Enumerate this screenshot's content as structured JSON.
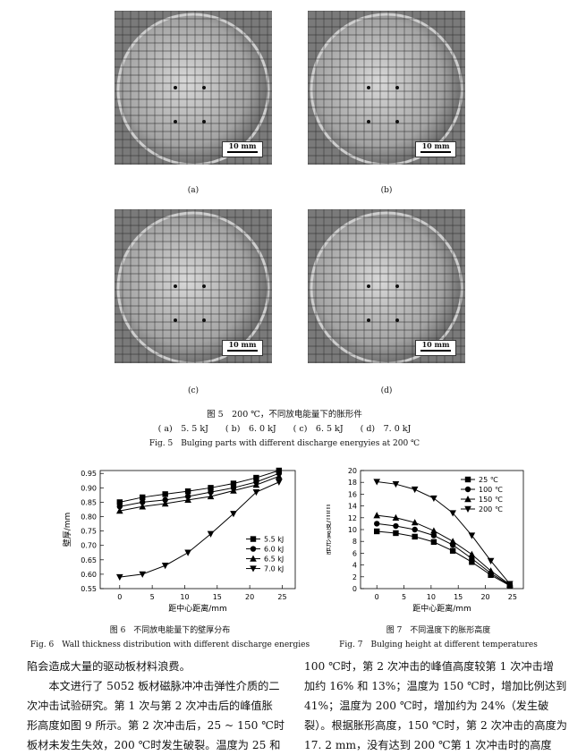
{
  "photos": [
    {
      "label": "(a)",
      "scale": "10 mm"
    },
    {
      "label": "(b)",
      "scale": "10 mm"
    },
    {
      "label": "(c)",
      "scale": "10 mm"
    },
    {
      "label": "(d)",
      "scale": "10 mm"
    }
  ],
  "fig5": {
    "title_cn": "图 5　200 ℃，不同放电能量下的胀形件",
    "subs": "( a)　5. 5 kJ　　( b)　6. 0 kJ　　( c)　6. 5 kJ　　( d)　7. 0 kJ",
    "title_en": "Fig. 5　Bulging parts with different discharge energyies at 200 ℃"
  },
  "fig6": {
    "caption_cn": "图 6　不同放电能量下的壁厚分布",
    "caption_en": "Fig. 6　Wall thickness distribution with different discharge energies"
  },
  "fig7": {
    "caption_cn": "图 7　不同温度下的胀形高度",
    "caption_en": "Fig. 7　Bulging height at different temperatures"
  },
  "chart_data": [
    {
      "type": "line",
      "title": "",
      "xlabel": "距中心距离/mm",
      "ylabel": "壁厚/mm",
      "xlim": [
        -3,
        27
      ],
      "ylim": [
        0.55,
        0.96
      ],
      "xticks": [
        "0",
        "5",
        "10",
        "15",
        "20",
        "25"
      ],
      "yticks": [
        "0.55",
        "0.60",
        "0.65",
        "0.70",
        "0.75",
        "0.80",
        "0.85",
        "0.90",
        "0.95"
      ],
      "x": [
        0,
        3.5,
        7,
        10.5,
        14,
        17.5,
        21,
        24.5
      ],
      "legend": "right",
      "series": [
        {
          "name": "5.5 kJ",
          "marker": "square",
          "values": [
            0.85,
            0.867,
            0.878,
            0.888,
            0.9,
            0.915,
            0.935,
            0.96
          ]
        },
        {
          "name": "6.0 kJ",
          "marker": "circle",
          "values": [
            0.835,
            0.85,
            0.858,
            0.87,
            0.885,
            0.9,
            0.92,
            0.95
          ]
        },
        {
          "name": "6.5 kJ",
          "marker": "triangle-up",
          "values": [
            0.82,
            0.835,
            0.845,
            0.858,
            0.87,
            0.89,
            0.91,
            0.94
          ]
        },
        {
          "name": "7.0 kJ",
          "marker": "triangle-down",
          "values": [
            0.59,
            0.6,
            0.63,
            0.675,
            0.74,
            0.81,
            0.885,
            0.92
          ]
        }
      ]
    },
    {
      "type": "line",
      "title": "",
      "xlabel": "距中心距离/mm",
      "ylabel": "胀形高度/mm",
      "xlim": [
        -3,
        27
      ],
      "ylim": [
        0,
        20
      ],
      "xticks": [
        "0",
        "5",
        "10",
        "15",
        "20",
        "25"
      ],
      "yticks": [
        "0",
        "2",
        "4",
        "6",
        "8",
        "10",
        "12",
        "14",
        "16",
        "18",
        "20"
      ],
      "x": [
        0,
        3.5,
        7,
        10.5,
        14,
        17.5,
        21,
        24.5
      ],
      "legend": "top-right",
      "series": [
        {
          "name": "25 ℃",
          "marker": "square",
          "values": [
            9.7,
            9.4,
            8.8,
            7.9,
            6.4,
            4.5,
            2.3,
            0.5
          ]
        },
        {
          "name": "100 ℃",
          "marker": "circle",
          "values": [
            11.0,
            10.6,
            10.0,
            9.0,
            7.4,
            5.1,
            2.6,
            0.6
          ]
        },
        {
          "name": "150 ℃",
          "marker": "triangle-up",
          "values": [
            12.4,
            12.0,
            11.2,
            9.8,
            8.0,
            5.8,
            3.0,
            0.7
          ]
        },
        {
          "name": "200 ℃",
          "marker": "triangle-down",
          "values": [
            18.1,
            17.7,
            16.8,
            15.3,
            12.8,
            9.0,
            4.7,
            0.8
          ]
        }
      ]
    }
  ],
  "text": {
    "left": [
      "陷会造成大量的驱动板材料浪费。",
      "　　本文进行了 5052 板材磁脉冲冲击弹性介质的二",
      "次冲击试验研究。第 1 次与第 2 次冲击后的峰值胀",
      "形高度如图 9 所示。第 2 次冲击后，25 ~ 150 ℃时",
      "板材未发生失效，200 ℃时发生破裂。温度为 25 和"
    ],
    "right": [
      "100 ℃时，第 2 次冲击的峰值高度较第 1 次冲击增",
      "加约 16% 和 13%；温度为 150 ℃时，增加比例达到",
      "41%；温度为 200 ℃时，增加约为 24%（发生破",
      "裂）。根据胀形高度，150 ℃时，第 2 次冲击的高度为",
      "17. 2 mm，没有达到 200 ℃第 1 次冲击时的高度"
    ]
  }
}
